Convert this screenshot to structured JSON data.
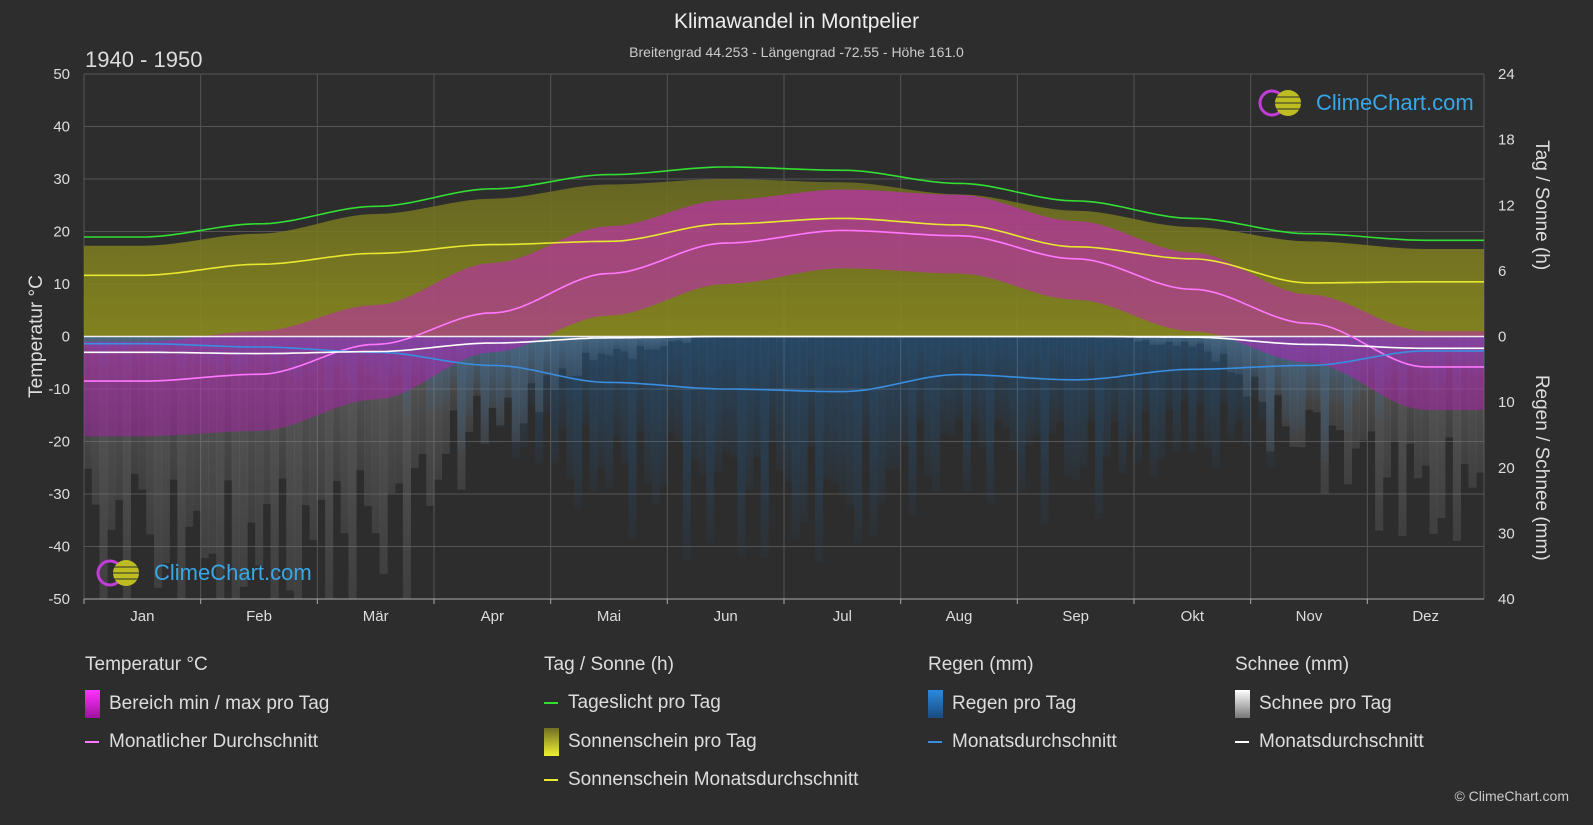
{
  "header": {
    "title": "Klimawandel in Montpelier",
    "subtitle": "Breitengrad 44.253 - Längengrad -72.55 - Höhe 161.0",
    "period": "1940 - 1950"
  },
  "brand": {
    "name": "ClimeChart.com",
    "copyright": "© ClimeChart.com"
  },
  "colors": {
    "background": "#2d2d2d",
    "temp_range": "#d81ed8",
    "temp_avg": "#ff77ff",
    "daylight": "#33dd33",
    "sunshine_fill": "#9a9a22",
    "sunshine_avg": "#e8e830",
    "rain": "#1f78c8",
    "rain_avg": "#3a8ee0",
    "snow": "#bbbbbb",
    "snow_avg": "#ffffff"
  },
  "chart_data": {
    "type": "line",
    "categories": [
      "Jan",
      "Feb",
      "Mär",
      "Apr",
      "Mai",
      "Jun",
      "Jul",
      "Aug",
      "Sep",
      "Okt",
      "Nov",
      "Dez"
    ],
    "left_axis": {
      "label": "Temperatur °C",
      "ylim": [
        -50,
        50
      ],
      "ticks": [
        "50",
        "40",
        "30",
        "20",
        "10",
        "0",
        "-10",
        "-20",
        "-30",
        "-40",
        "-50"
      ]
    },
    "right_axis_top": {
      "label": "Tag / Sonne (h)",
      "ylim": [
        0,
        24
      ],
      "ticks": [
        "24",
        "18",
        "12",
        "6",
        "0"
      ]
    },
    "right_axis_bottom": {
      "label": "Regen / Schnee (mm)",
      "ylim": [
        0,
        40
      ],
      "ticks": [
        "10",
        "20",
        "30",
        "40"
      ]
    },
    "grid": true,
    "series": [
      {
        "name": "Monatlicher Durchschnitt",
        "group": "Temperatur °C",
        "unit": "°C",
        "values": [
          -8.5,
          -7.2,
          -1.5,
          4.5,
          12.0,
          17.8,
          20.2,
          19.2,
          14.8,
          9.0,
          2.5,
          -5.8
        ]
      },
      {
        "name": "Tageslicht pro Tag",
        "group": "Tag / Sonne (h)",
        "unit": "h",
        "values": [
          9.1,
          10.3,
          11.9,
          13.5,
          14.8,
          15.5,
          15.2,
          14.0,
          12.4,
          10.8,
          9.4,
          8.8
        ]
      },
      {
        "name": "Sonnenschein Monatsdurchschnitt",
        "group": "Tag / Sonne (h)",
        "unit": "h",
        "values": [
          5.6,
          6.6,
          7.6,
          8.4,
          8.7,
          10.3,
          10.8,
          10.2,
          8.2,
          7.1,
          4.9,
          5.0
        ]
      },
      {
        "name": "Regen Monatsdurchschnitt",
        "group": "Regen (mm)",
        "unit": "mm",
        "values": [
          1.1,
          1.6,
          2.4,
          4.4,
          7.0,
          8.0,
          8.4,
          5.8,
          6.6,
          5.0,
          4.4,
          2.2
        ]
      },
      {
        "name": "Schnee Monatsdurchschnitt",
        "group": "Schnee (mm)",
        "unit": "mm",
        "values": [
          2.4,
          2.6,
          2.3,
          1.0,
          0.2,
          0.0,
          0.0,
          0.0,
          0.0,
          0.1,
          1.2,
          1.8
        ]
      }
    ],
    "daily_temp_range": {
      "min": [
        -19,
        -18,
        -12,
        -3,
        4,
        10,
        13,
        12,
        7,
        1,
        -5,
        -14
      ],
      "max": [
        -1,
        1,
        6,
        14,
        21,
        26,
        28,
        27,
        22,
        16,
        8,
        1
      ]
    },
    "daily_sunshine_ceiling": [
      8.3,
      9.4,
      11.2,
      12.6,
      13.9,
      14.4,
      14.1,
      13.0,
      11.5,
      10.0,
      8.7,
      8.0
    ]
  },
  "legend": [
    {
      "title": "Temperatur °C",
      "items": [
        {
          "kind": "box",
          "label": "Bereich min / max pro Tag",
          "color_key": "temp_range"
        },
        {
          "kind": "line",
          "label": "Monatlicher Durchschnitt",
          "color_key": "temp_avg"
        }
      ]
    },
    {
      "title": "Tag / Sonne (h)",
      "items": [
        {
          "kind": "line",
          "label": "Tageslicht pro Tag",
          "color_key": "daylight"
        },
        {
          "kind": "box",
          "label": "Sonnenschein pro Tag",
          "color_key": "sunshine_avg"
        },
        {
          "kind": "line",
          "label": "Sonnenschein Monatsdurchschnitt",
          "color_key": "sunshine_avg"
        }
      ]
    },
    {
      "title": "Regen (mm)",
      "items": [
        {
          "kind": "box",
          "label": "Regen pro Tag",
          "color_key": "rain"
        },
        {
          "kind": "line",
          "label": "Monatsdurchschnitt",
          "color_key": "rain_avg"
        }
      ]
    },
    {
      "title": "Schnee (mm)",
      "items": [
        {
          "kind": "box",
          "label": "Schnee pro Tag",
          "color_key": "snow"
        },
        {
          "kind": "line",
          "label": "Monatsdurchschnitt",
          "color_key": "snow_avg"
        }
      ]
    }
  ]
}
